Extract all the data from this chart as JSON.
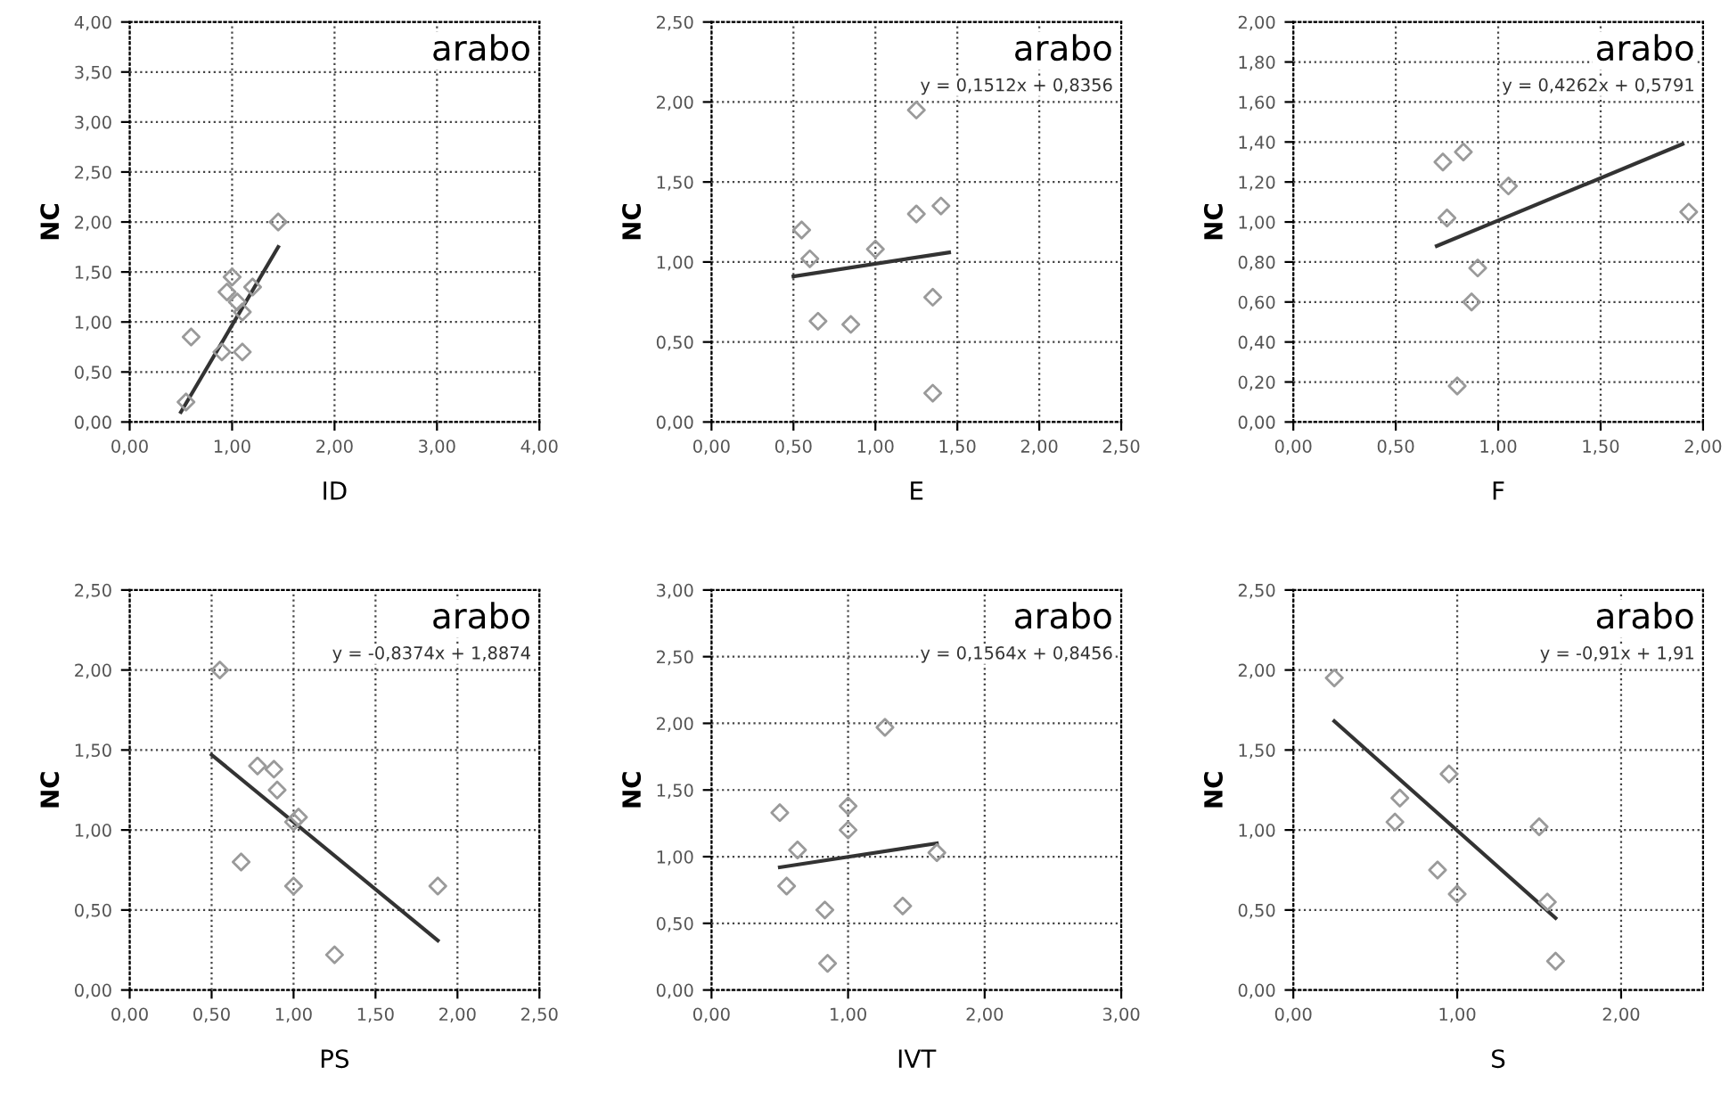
{
  "chart_data": [
    {
      "type": "scatter",
      "xlabel": "ID",
      "ylabel": "NC",
      "annotations": [
        "arabo"
      ],
      "grid": true,
      "xlim": [
        0,
        4
      ],
      "ylim": [
        0,
        4
      ],
      "xticks": [
        {
          "value": 0,
          "label": "0,00"
        },
        {
          "value": 1,
          "label": "1,00"
        },
        {
          "value": 2,
          "label": "2,00"
        },
        {
          "value": 3,
          "label": "3,00"
        },
        {
          "value": 4,
          "label": "4,00"
        }
      ],
      "yticks": [
        {
          "value": 0,
          "label": "0,00"
        },
        {
          "value": 0.5,
          "label": "0,50"
        },
        {
          "value": 1,
          "label": "1,00"
        },
        {
          "value": 1.5,
          "label": "1,50"
        },
        {
          "value": 2,
          "label": "2,00"
        },
        {
          "value": 2.5,
          "label": "2,50"
        },
        {
          "value": 3,
          "label": "3,00"
        },
        {
          "value": 3.5,
          "label": "3,50"
        },
        {
          "value": 4,
          "label": "4,00"
        }
      ],
      "series": [
        {
          "marker": "diamond",
          "color": "#9a9a9a",
          "x": [
            1.45,
            0.55,
            0.6,
            1.0,
            0.95,
            1.05,
            1.1,
            0.9,
            1.1,
            1.2
          ],
          "values": [
            2.0,
            0.2,
            0.85,
            1.45,
            1.3,
            1.2,
            1.1,
            0.7,
            0.7,
            1.35
          ]
        },
        {
          "type": "line",
          "marker": "none",
          "color": "#333333",
          "x": [
            0.5,
            1.45
          ],
          "values": [
            0.1,
            1.75
          ]
        }
      ]
    },
    {
      "type": "scatter",
      "xlabel": "E",
      "ylabel": "NC",
      "annotations": [
        "arabo",
        "y = 0,1512x + 0,8356"
      ],
      "grid": true,
      "xlim": [
        0,
        2.5
      ],
      "ylim": [
        0,
        2.5
      ],
      "xticks": [
        {
          "value": 0,
          "label": "0,00"
        },
        {
          "value": 0.5,
          "label": "0,50"
        },
        {
          "value": 1,
          "label": "1,00"
        },
        {
          "value": 1.5,
          "label": "1,50"
        },
        {
          "value": 2,
          "label": "2,00"
        },
        {
          "value": 2.5,
          "label": "2,50"
        }
      ],
      "yticks": [
        {
          "value": 0,
          "label": "0,00"
        },
        {
          "value": 0.5,
          "label": "0,50"
        },
        {
          "value": 1,
          "label": "1,00"
        },
        {
          "value": 1.5,
          "label": "1,50"
        },
        {
          "value": 2,
          "label": "2,00"
        },
        {
          "value": 2.5,
          "label": "2,50"
        }
      ],
      "series": [
        {
          "marker": "diamond",
          "color": "#9a9a9a",
          "x": [
            0.55,
            0.6,
            0.65,
            0.85,
            1.0,
            1.25,
            1.25,
            1.4,
            1.35,
            1.35
          ],
          "values": [
            1.2,
            1.02,
            0.63,
            0.61,
            1.08,
            1.95,
            1.3,
            1.35,
            0.78,
            0.18
          ]
        },
        {
          "type": "line",
          "marker": "none",
          "color": "#333333",
          "x": [
            0.5,
            1.45
          ],
          "values": [
            0.91,
            1.06
          ]
        }
      ]
    },
    {
      "type": "scatter",
      "xlabel": "F",
      "ylabel": "NC",
      "annotations": [
        "arabo",
        "y = 0,4262x + 0,5791"
      ],
      "grid": true,
      "xlim": [
        0,
        2
      ],
      "ylim": [
        0,
        2
      ],
      "xticks": [
        {
          "value": 0,
          "label": "0,00"
        },
        {
          "value": 0.5,
          "label": "0,50"
        },
        {
          "value": 1,
          "label": "1,00"
        },
        {
          "value": 1.5,
          "label": "1,50"
        },
        {
          "value": 2,
          "label": "2,00"
        }
      ],
      "yticks": [
        {
          "value": 0,
          "label": "0,00"
        },
        {
          "value": 0.2,
          "label": "0,20"
        },
        {
          "value": 0.4,
          "label": "0,40"
        },
        {
          "value": 0.6,
          "label": "0,60"
        },
        {
          "value": 0.8,
          "label": "0,80"
        },
        {
          "value": 1,
          "label": "1,00"
        },
        {
          "value": 1.2,
          "label": "1,20"
        },
        {
          "value": 1.4,
          "label": "1,40"
        },
        {
          "value": 1.6,
          "label": "1,60"
        },
        {
          "value": 1.8,
          "label": "1,80"
        },
        {
          "value": 2,
          "label": "2,00"
        }
      ],
      "series": [
        {
          "marker": "diamond",
          "color": "#9a9a9a",
          "x": [
            0.73,
            0.83,
            0.75,
            1.05,
            0.9,
            0.87,
            0.8,
            1.93
          ],
          "values": [
            1.3,
            1.35,
            1.02,
            1.18,
            0.77,
            0.6,
            0.18,
            1.05
          ]
        },
        {
          "type": "line",
          "marker": "none",
          "color": "#333333",
          "x": [
            0.7,
            1.9
          ],
          "values": [
            0.88,
            1.39
          ]
        }
      ]
    },
    {
      "type": "scatter",
      "xlabel": "PS",
      "ylabel": "NC",
      "annotations": [
        "arabo",
        "y = -0,8374x + 1,8874"
      ],
      "grid": true,
      "xlim": [
        0,
        2.5
      ],
      "ylim": [
        0,
        2.5
      ],
      "xticks": [
        {
          "value": 0,
          "label": "0,00"
        },
        {
          "value": 0.5,
          "label": "0,50"
        },
        {
          "value": 1,
          "label": "1,00"
        },
        {
          "value": 1.5,
          "label": "1,50"
        },
        {
          "value": 2,
          "label": "2,00"
        },
        {
          "value": 2.5,
          "label": "2,50"
        }
      ],
      "yticks": [
        {
          "value": 0,
          "label": "0,00"
        },
        {
          "value": 0.5,
          "label": "0,50"
        },
        {
          "value": 1,
          "label": "1,00"
        },
        {
          "value": 1.5,
          "label": "1,50"
        },
        {
          "value": 2,
          "label": "2,00"
        },
        {
          "value": 2.5,
          "label": "2,50"
        }
      ],
      "series": [
        {
          "marker": "diamond",
          "color": "#9a9a9a",
          "x": [
            0.55,
            0.78,
            0.88,
            0.9,
            1.03,
            1.0,
            0.68,
            1.0,
            1.25,
            1.88
          ],
          "values": [
            2.0,
            1.4,
            1.38,
            1.25,
            1.08,
            1.05,
            0.8,
            0.65,
            0.22,
            0.65
          ]
        },
        {
          "type": "line",
          "marker": "none",
          "color": "#333333",
          "x": [
            0.5,
            1.88
          ],
          "values": [
            1.47,
            0.31
          ]
        }
      ]
    },
    {
      "type": "scatter",
      "xlabel": "IVT",
      "ylabel": "NC",
      "annotations": [
        "arabo",
        "y = 0,1564x + 0,8456"
      ],
      "grid": true,
      "xlim": [
        0,
        3
      ],
      "ylim": [
        0,
        3
      ],
      "xticks": [
        {
          "value": 0,
          "label": "0,00"
        },
        {
          "value": 1,
          "label": "1,00"
        },
        {
          "value": 2,
          "label": "2,00"
        },
        {
          "value": 3,
          "label": "3,00"
        }
      ],
      "yticks": [
        {
          "value": 0,
          "label": "0,00"
        },
        {
          "value": 0.5,
          "label": "0,50"
        },
        {
          "value": 1,
          "label": "1,00"
        },
        {
          "value": 1.5,
          "label": "1,50"
        },
        {
          "value": 2,
          "label": "2,00"
        },
        {
          "value": 2.5,
          "label": "2,50"
        },
        {
          "value": 3,
          "label": "3,00"
        }
      ],
      "series": [
        {
          "marker": "diamond",
          "color": "#9a9a9a",
          "x": [
            0.5,
            0.63,
            0.55,
            0.83,
            0.85,
            1.0,
            1.0,
            1.27,
            1.4,
            1.65
          ],
          "values": [
            1.33,
            1.05,
            0.78,
            0.6,
            0.2,
            1.38,
            1.2,
            1.97,
            0.63,
            1.03
          ]
        },
        {
          "type": "line",
          "marker": "none",
          "color": "#333333",
          "x": [
            0.5,
            1.65
          ],
          "values": [
            0.92,
            1.1
          ]
        }
      ]
    },
    {
      "type": "scatter",
      "xlabel": "S",
      "ylabel": "NC",
      "annotations": [
        "arabo",
        "y = -0,91x + 1,91"
      ],
      "grid": true,
      "xlim": [
        0,
        2.5
      ],
      "ylim": [
        0,
        2.5
      ],
      "xticks": [
        {
          "value": 0,
          "label": "0,00"
        },
        {
          "value": 1,
          "label": "1,00"
        },
        {
          "value": 2,
          "label": "2,00"
        }
      ],
      "yticks": [
        {
          "value": 0,
          "label": "0,00"
        },
        {
          "value": 0.5,
          "label": "0,50"
        },
        {
          "value": 1,
          "label": "1,00"
        },
        {
          "value": 1.5,
          "label": "1,50"
        },
        {
          "value": 2,
          "label": "2,00"
        },
        {
          "value": 2.5,
          "label": "2,50"
        }
      ],
      "series": [
        {
          "marker": "diamond",
          "color": "#9a9a9a",
          "x": [
            0.25,
            0.65,
            0.62,
            0.95,
            0.88,
            1.0,
            1.5,
            1.55,
            1.6
          ],
          "values": [
            1.95,
            1.2,
            1.05,
            1.35,
            0.75,
            0.6,
            1.02,
            0.55,
            0.18
          ]
        },
        {
          "type": "line",
          "marker": "none",
          "color": "#333333",
          "x": [
            0.25,
            1.6
          ],
          "values": [
            1.68,
            0.45
          ]
        }
      ]
    }
  ]
}
